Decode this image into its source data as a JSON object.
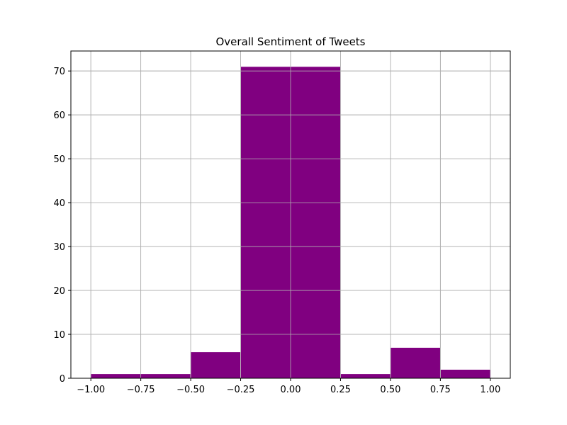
{
  "chart_data": {
    "type": "bar",
    "title": "Overall Sentiment of Tweets",
    "xlabel": "",
    "ylabel": "",
    "bins": [
      {
        "start": -1.0,
        "end": -0.5,
        "value": 1
      },
      {
        "start": -0.5,
        "end": -0.25,
        "value": 6
      },
      {
        "start": -0.25,
        "end": 0.25,
        "value": 71
      },
      {
        "start": 0.25,
        "end": 0.5,
        "value": 1
      },
      {
        "start": 0.5,
        "end": 0.75,
        "value": 7
      },
      {
        "start": 0.75,
        "end": 1.0,
        "value": 2
      }
    ],
    "xlim": [
      -1.1,
      1.1
    ],
    "ylim": [
      0,
      74.55
    ],
    "xticks": [
      -1.0,
      -0.75,
      -0.5,
      -0.25,
      0.0,
      0.25,
      0.5,
      0.75,
      1.0
    ],
    "xtick_labels": [
      "−1.00",
      "−0.75",
      "−0.50",
      "−0.25",
      "0.00",
      "0.25",
      "0.50",
      "0.75",
      "1.00"
    ],
    "yticks": [
      0,
      10,
      20,
      30,
      40,
      50,
      60,
      70
    ],
    "ytick_labels": [
      "0",
      "10",
      "20",
      "30",
      "40",
      "50",
      "60",
      "70"
    ],
    "grid": true,
    "colors": {
      "bar": "#800080",
      "grid": "#b0b0b0",
      "axes": "#000000"
    }
  }
}
